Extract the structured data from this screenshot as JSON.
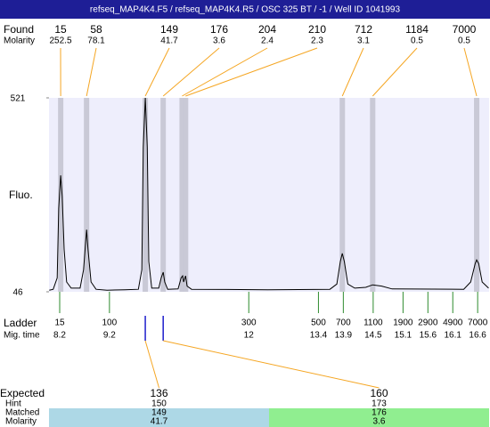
{
  "header": {
    "title": "refseq_MAP4K4.F5 / refseq_MAP4K4.R5 / OSC 325 BT / -1 / Well ID 1041993"
  },
  "chart_data": {
    "type": "electropherogram",
    "y_label": "Fluo.",
    "ylim": [
      46,
      521
    ],
    "yticks": [
      46,
      521
    ],
    "xlim": [
      7.985,
      16.83
    ],
    "found_label": "Found",
    "molarity_label": "Molarity",
    "peaks": {
      "found": [
        15,
        58,
        149,
        176,
        204,
        210,
        712,
        1184,
        7000
      ],
      "molarity": [
        252.5,
        78.1,
        41.7,
        3.6,
        2.4,
        2.3,
        3.1,
        0.5,
        0.5
      ],
      "mig_time": [
        8.22,
        8.74,
        9.92,
        10.28,
        10.66,
        10.73,
        13.88,
        14.49,
        16.58
      ]
    },
    "trace": {
      "x": [
        7.99,
        8.07,
        8.15,
        8.18,
        8.22,
        8.25,
        8.29,
        8.34,
        8.43,
        8.61,
        8.68,
        8.74,
        8.77,
        8.83,
        8.93,
        9.15,
        9.51,
        9.78,
        9.85,
        9.88,
        9.92,
        9.96,
        9.99,
        10.05,
        10.19,
        10.24,
        10.28,
        10.31,
        10.37,
        10.58,
        10.64,
        10.67,
        10.69,
        10.73,
        10.76,
        10.85,
        12.38,
        13.63,
        13.77,
        13.84,
        13.88,
        13.92,
        13.99,
        14.13,
        14.35,
        14.49,
        14.67,
        14.88,
        16.32,
        16.46,
        16.55,
        16.58,
        16.62,
        16.69,
        16.82
      ],
      "y": [
        50,
        52,
        80,
        250,
        331,
        280,
        150,
        70,
        55,
        55,
        100,
        198,
        150,
        70,
        52,
        50,
        51,
        52,
        100,
        400,
        521,
        400,
        120,
        55,
        55,
        80,
        94,
        70,
        52,
        53,
        80,
        85,
        70,
        85,
        60,
        52,
        51,
        52,
        65,
        120,
        140,
        120,
        65,
        55,
        57,
        63,
        60,
        53,
        52,
        70,
        115,
        124,
        115,
        70,
        55
      ]
    },
    "ladder": {
      "label": "Ladder",
      "time_label": "Mig. time",
      "sizes": [
        15,
        100,
        300,
        500,
        700,
        1100,
        1900,
        2900,
        4900,
        7000
      ],
      "mig_time": [
        8.2,
        9.2,
        12,
        13.4,
        13.9,
        14.5,
        15.1,
        15.6,
        16.1,
        16.6
      ]
    },
    "expected": {
      "label": "Expected",
      "hint_label": "Hint",
      "matched_label": "Matched",
      "molarity_label": "Molarity",
      "values": [
        136,
        160
      ],
      "hint": [
        150,
        173
      ],
      "matched": [
        149,
        176
      ],
      "molarity": [
        41.7,
        3.6
      ]
    }
  }
}
